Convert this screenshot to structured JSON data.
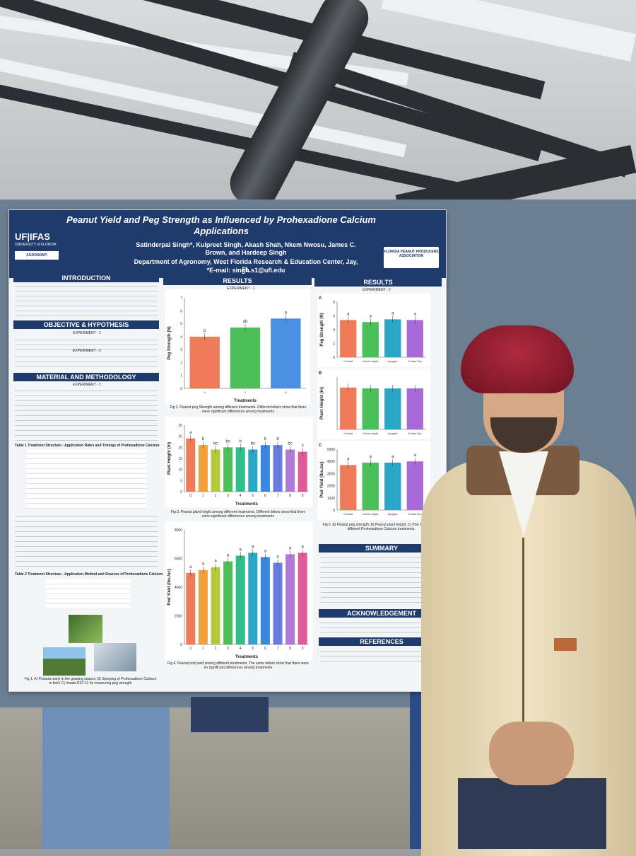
{
  "poster": {
    "title": "Peanut Yield and Peg Strength as Influenced by Prohexadione Calcium Applications",
    "authors": "Satinderpal Singh*, Kulpreet Singh, Akash Shah, Nkem Nwosu, James C. Brown, and Hardeep Singh",
    "department": "Department of Agronomy, West Florida Research & Education Center, Jay, FL",
    "email": "*E-mail: singh.s1@ufl.edu",
    "logo_left": "UF|IFAS",
    "logo_left_sub": "UNIVERSITY of FLORIDA",
    "logo_agronomy": "AGRONOMY DEPARTMENT",
    "logo_right": "FLORIDA PEANUT PRODUCERS ASSOCIATION",
    "sections": {
      "introduction": "INTRODUCTION",
      "objective": "OBJECTIVE & HYPOTHESIS",
      "methods": "MATERIAL AND METHODOLOGY",
      "results_left": "RESULTS",
      "results_right": "RESULTS",
      "summary": "SUMMARY",
      "acknowledgement": "ACKNOWLEDGEMENT",
      "references": "REFERENCES"
    },
    "labels": {
      "experiment1": "EXPERIMENT - 1",
      "experiment2": "EXPERIMENT - 2"
    },
    "captions": {
      "fig1": "Fig 1. A) Peanuts early in the growing season; B) Spraying of Prohexadione Calcium in field; C) Imada DS7-11 for measuring peg strength",
      "fig2": "Fig 2. Peanut peg Strength among different treatments. Different letters show that there were significant differences among treatments",
      "fig3": "Fig 3. Peanut plant height among different treatments. Different letters show that there were significant differences among treatments",
      "fig4": "Fig 4. Peanut pod yield among different treatments. The same letters show that there were no significant differences among treatments",
      "fig5": "Fig 5. A) Peanut peg strength; B) Peanut plant height; C) Pod Yield among different Prohexadione Calcium treatments"
    },
    "table1_title": "Table 1 Treatment Structure - Application Rates and Timings of Prohexadione Calcium",
    "table2_title": "Table 2 Treatment Structure - Application Method and Sources of Prohexadione Calcium"
  },
  "chart_data": [
    {
      "type": "bar",
      "title": "",
      "xlabel": "Treatments",
      "ylabel": "Peg Strength (N)",
      "categories": [
        "0",
        "2",
        "5"
      ],
      "values": [
        4.0,
        4.7,
        5.4
      ],
      "letters": [
        "b",
        "ab",
        "a"
      ],
      "colors": [
        "#ef7b5b",
        "#4cbf5a",
        "#4a8fe0"
      ],
      "ylim": [
        0,
        7
      ],
      "yticks": [
        "0",
        "1",
        "2",
        "3",
        "4",
        "5",
        "6",
        "7"
      ]
    },
    {
      "type": "bar",
      "title": "",
      "xlabel": "Treatments",
      "ylabel": "Plant Height (in)",
      "categories": [
        "0",
        "1",
        "2",
        "3",
        "4",
        "5",
        "6",
        "7",
        "8",
        "9"
      ],
      "values": [
        24,
        21,
        19,
        20,
        20,
        19,
        21,
        21,
        19,
        18
      ],
      "letters": [
        "a",
        "b",
        "bc",
        "bc",
        "b",
        "bc",
        "b",
        "b",
        "bc",
        "c"
      ],
      "colors": [
        "#ef7b5b",
        "#f0a03c",
        "#b7c93a",
        "#4cbf5a",
        "#2dbf8a",
        "#2aa6c8",
        "#3b86e0",
        "#6a7be0",
        "#b07ad8",
        "#e05a9a"
      ],
      "ylim": [
        0,
        30
      ],
      "yticks": [
        "0",
        "5",
        "10",
        "15",
        "20",
        "25",
        "30"
      ]
    },
    {
      "type": "bar",
      "title": "",
      "xlabel": "Treatments",
      "ylabel": "Pod Yield (lbs./ac)",
      "categories": [
        "0",
        "1",
        "2",
        "3",
        "4",
        "5",
        "6",
        "7",
        "8",
        "9"
      ],
      "values": [
        5000,
        5200,
        5400,
        5800,
        6200,
        6400,
        6100,
        5700,
        6300,
        6400
      ],
      "letters": [
        "a",
        "a",
        "a",
        "a",
        "a",
        "a",
        "a",
        "a",
        "a",
        "a"
      ],
      "colors": [
        "#ef7b5b",
        "#f0a03c",
        "#b7c93a",
        "#4cbf5a",
        "#2dbf8a",
        "#2aa6c8",
        "#3b86e0",
        "#6a7be0",
        "#b07ad8",
        "#e05a9a"
      ],
      "ylim": [
        0,
        8000
      ],
      "yticks": [
        "0",
        "2000",
        "4000",
        "6000",
        "8000"
      ]
    },
    {
      "type": "bar",
      "title": "A",
      "xlabel": "",
      "ylabel": "Peg Strength (N)",
      "categories": [
        "Control",
        "Kudos liquid",
        "Apogee",
        "Kudos Dry"
      ],
      "values": [
        5.4,
        5.1,
        5.5,
        5.4
      ],
      "letters": [
        "a",
        "a",
        "a",
        "a"
      ],
      "colors": [
        "#ef7b5b",
        "#4cbf5a",
        "#2aa6c8",
        "#a86ad8"
      ],
      "ylim": [
        0,
        8
      ],
      "yticks": [
        "0",
        "2",
        "4",
        "6",
        "8"
      ]
    },
    {
      "type": "bar",
      "title": "B",
      "xlabel": "",
      "ylabel": "Plant Height (in)",
      "categories": [
        "Control",
        "Kudos liquid",
        "Apogee",
        "Kudos Dry"
      ],
      "values": [
        24,
        23.5,
        23.5,
        23.5
      ],
      "letters": [
        "",
        "",
        "",
        ""
      ],
      "colors": [
        "#ef7b5b",
        "#4cbf5a",
        "#2aa6c8",
        "#a86ad8"
      ],
      "ylim": [
        0,
        30
      ],
      "yticks": []
    },
    {
      "type": "bar",
      "title": "C",
      "xlabel": "",
      "ylabel": "Pod Yield (lbs./ac)",
      "categories": [
        "Control",
        "Kudos liquid",
        "Apogee",
        "Kudos Dry"
      ],
      "values": [
        3700,
        3900,
        3900,
        4000
      ],
      "letters": [
        "a",
        "a",
        "a",
        "a"
      ],
      "colors": [
        "#ef7b5b",
        "#4cbf5a",
        "#2aa6c8",
        "#a86ad8"
      ],
      "ylim": [
        0,
        5000
      ],
      "yticks": [
        "0",
        "1000",
        "2000",
        "3000",
        "4000",
        "5000"
      ]
    }
  ]
}
